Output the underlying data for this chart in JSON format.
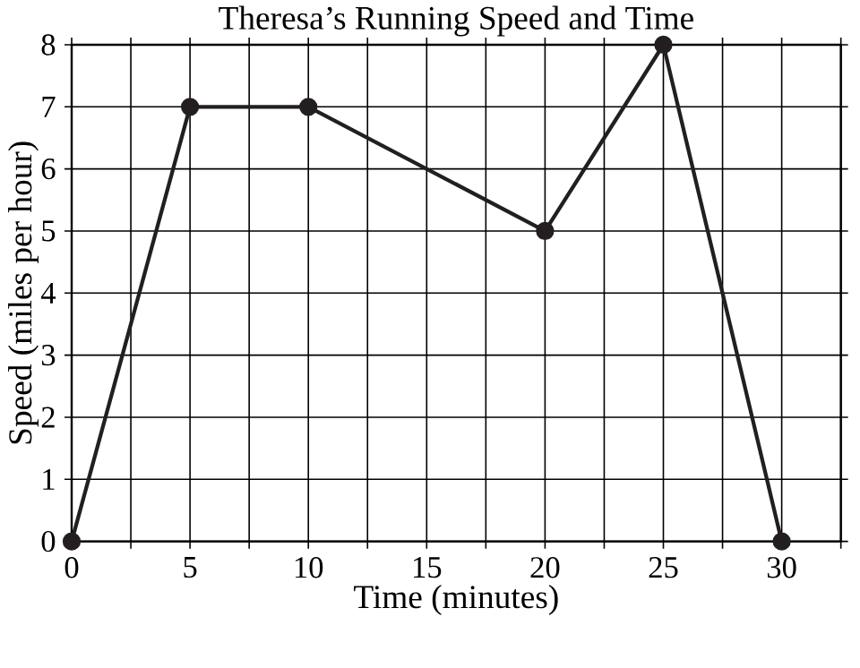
{
  "chart_data": {
    "type": "line",
    "title": "Theresa’s Running Speed and Time",
    "xlabel": "Time (minutes)",
    "ylabel": "Speed (miles per hour)",
    "x": [
      0,
      5,
      10,
      20,
      25,
      30
    ],
    "series": [
      {
        "color": "#231f20",
        "values": [
          0,
          7,
          7,
          5,
          8,
          0
        ]
      }
    ],
    "xlim": [
      0,
      32.5
    ],
    "ylim": [
      0,
      8
    ],
    "xticks": [
      0,
      {
        "value": 2.5,
        "label": null
      },
      5,
      {
        "value": 7.5,
        "label": null
      },
      10,
      {
        "value": 12.5,
        "label": null
      },
      15,
      {
        "value": 17.5,
        "label": null
      },
      20,
      {
        "value": 22.5,
        "label": null
      },
      25,
      {
        "value": 27.5,
        "label": null
      },
      30,
      {
        "value": 32.5,
        "label": null
      }
    ],
    "yticks": [
      0,
      1,
      2,
      3,
      4,
      5,
      6,
      7,
      8
    ],
    "grid": true,
    "marker": "circle",
    "line_style": "solid"
  }
}
